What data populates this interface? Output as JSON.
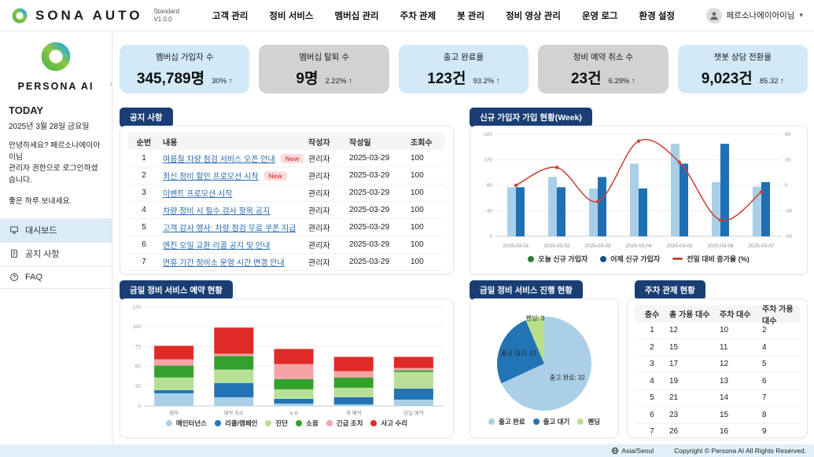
{
  "colors": {
    "navy": "#1a3e74",
    "kpi_blue_bg": "#d2eaf8",
    "kpi_gray_bg": "#d2d2d2",
    "link": "#2b6cb0",
    "footer_bg": "#dff0fb",
    "active_menu_bg": "#d9ecf8",
    "new_badge_bg": "#fbdcdc",
    "new_badge_text": "#e05252"
  },
  "header": {
    "logo_text": "SONA AUTO",
    "version_line1": "Standard",
    "version_line2": "V1.0.0",
    "nav": [
      "고객 관리",
      "정비 서비스",
      "멤버십 관리",
      "주차 관제",
      "봇 관리",
      "정비 영상 관리",
      "운영 로그",
      "환경 설정"
    ],
    "user_name": "페르소나에이아이님"
  },
  "sidebar": {
    "brand": "PERSONA AI",
    "today_label": "TODAY",
    "date": "2025년 3월 28일 금요일",
    "greeting_line1": "안녕하세요? 페르소나에이아이님",
    "greeting_line2": "관리자 권한으로 로그인하셨습니다.",
    "greeting_line3": "좋은 하루 보내세요.",
    "menu": [
      {
        "label": "대시보드",
        "active": true
      },
      {
        "label": "공지 사항",
        "active": false
      },
      {
        "label": "FAQ",
        "active": false
      }
    ]
  },
  "kpis": [
    {
      "title": "멤버십 가입자 수",
      "value": "345,789명",
      "delta": "30% ↑",
      "style": "blue"
    },
    {
      "title": "멤버십 탈퇴 수",
      "value": "9명",
      "delta": "2.22% ↑",
      "style": "gray"
    },
    {
      "title": "출고 완료율",
      "value": "123건",
      "delta": "93.2% ↑",
      "style": "blue"
    },
    {
      "title": "정비 예약 취소 수",
      "value": "23건",
      "delta": "6.29% ↑",
      "style": "gray"
    },
    {
      "title": "챗봇 상담 전환율",
      "value": "9,023건",
      "delta": "85.32 ↑",
      "style": "blue"
    }
  ],
  "notice": {
    "title": "공지 사항",
    "columns": [
      "순번",
      "내용",
      "작성자",
      "작성일",
      "조회수"
    ],
    "new_badge_label": "New",
    "rows": [
      {
        "no": "1",
        "content": "여름철 차량 점검 서비스 오픈 안내",
        "new": true,
        "author": "관리자",
        "date": "2025-03-29",
        "views": "100"
      },
      {
        "no": "2",
        "content": "최신 정비 할인 프로모션 시작",
        "new": true,
        "author": "관리자",
        "date": "2025-03-29",
        "views": "100"
      },
      {
        "no": "3",
        "content": "이벤트 프로모션 시작",
        "new": false,
        "author": "관리자",
        "date": "2025-03-29",
        "views": "100"
      },
      {
        "no": "4",
        "content": "차량 정비 시 필수 검사 항목 공지",
        "new": false,
        "author": "관리자",
        "date": "2025-03-29",
        "views": "100"
      },
      {
        "no": "5",
        "content": "고객 감사 행사: 차량 점검 무료 쿠폰 지급",
        "new": false,
        "author": "관리자",
        "date": "2025-03-29",
        "views": "100"
      },
      {
        "no": "6",
        "content": "엔진 오일 교환 리콜 공지 및 안내",
        "new": false,
        "author": "관리자",
        "date": "2025-03-29",
        "views": "100"
      },
      {
        "no": "7",
        "content": "연휴 기간 정비소 운영 시간 변경 안내",
        "new": false,
        "author": "관리자",
        "date": "2025-03-29",
        "views": "100"
      }
    ]
  },
  "parking": {
    "title": "주차 관제 현황",
    "columns": [
      "층수",
      "총 가용 대수",
      "주차 대수",
      "주차 가용 대수"
    ],
    "rows": [
      [
        "1",
        "12",
        "10",
        "2"
      ],
      [
        "2",
        "15",
        "11",
        "4"
      ],
      [
        "3",
        "17",
        "12",
        "5"
      ],
      [
        "4",
        "19",
        "13",
        "6"
      ],
      [
        "5",
        "21",
        "14",
        "7"
      ],
      [
        "6",
        "23",
        "15",
        "8"
      ],
      [
        "7",
        "26",
        "16",
        "9"
      ]
    ]
  },
  "footer": {
    "timezone": "Asia/Seoul",
    "copyright": "Copyright © Persona AI All Rights Reserved."
  },
  "chart_data": [
    {
      "id": "weekly_signups",
      "type": "bar",
      "title": "신규 가입자 가입 현황(Week)",
      "categories": [
        "2025-03-01",
        "2025-03-02",
        "2025-03-03",
        "2025-03-04",
        "2025-03-05",
        "2025-03-06",
        "2025-03-07"
      ],
      "series": [
        {
          "name": "오늘 신규 가입자",
          "type": "bar",
          "color": "#a9cfe8",
          "legend_color": "#2e7d32",
          "axis": "left",
          "values": [
            77,
            93,
            75,
            114,
            145,
            85,
            78
          ]
        },
        {
          "name": "어제 신규 가입자",
          "type": "bar",
          "color": "#1f6fb2",
          "legend_color": "#1b4f8a",
          "axis": "left",
          "values": [
            77,
            77,
            93,
            75,
            114,
            145,
            85
          ]
        },
        {
          "name": "전일 대비 증가율 (%)",
          "type": "line",
          "color": "#c6473c",
          "legend_color": "#c6473c",
          "axis": "right",
          "values": [
            0,
            21,
            -19,
            52,
            27,
            -41,
            -8
          ]
        }
      ],
      "left_axis": {
        "min": 0,
        "max": 160,
        "ticks": [
          0,
          40,
          80,
          120,
          160
        ]
      },
      "right_axis": {
        "min": -60,
        "max": 60,
        "ticks": [
          -60,
          -30,
          0,
          30,
          60
        ]
      },
      "grid": true,
      "legend_position": "bottom"
    },
    {
      "id": "today_reservations",
      "type": "bar",
      "subtype": "stacked",
      "title": "금일 정비 서비스 예약 현황",
      "categories": [
        "예약",
        "예약 취소",
        "노쇼",
        "재 예약",
        "당일 예약"
      ],
      "series": [
        {
          "name": "메인터넌스",
          "color": "#a9cfe8",
          "values": [
            16,
            11,
            3,
            2,
            8
          ]
        },
        {
          "name": "리콜/캠페인",
          "color": "#2274b5",
          "values": [
            4,
            18,
            6,
            9,
            14
          ]
        },
        {
          "name": "진단",
          "color": "#b7df97",
          "values": [
            16,
            17,
            12,
            12,
            21
          ]
        },
        {
          "name": "소음",
          "color": "#33a02c",
          "values": [
            15,
            17,
            13,
            13,
            2
          ]
        },
        {
          "name": "긴급 조치",
          "color": "#f5a3a6",
          "values": [
            8,
            3,
            19,
            8,
            3
          ]
        },
        {
          "name": "사고 수리",
          "color": "#e02a26",
          "values": [
            17,
            33,
            19,
            18,
            14
          ]
        }
      ],
      "y_axis": {
        "min": 0,
        "max": 125,
        "ticks": [
          0,
          25,
          50,
          75,
          100,
          125
        ]
      },
      "grid": true,
      "legend_position": "bottom"
    },
    {
      "id": "today_progress",
      "type": "pie",
      "title": "금일 정비 서비스 진행 현황",
      "slices": [
        {
          "name": "출고 완료",
          "value": 32,
          "color": "#aacfe6"
        },
        {
          "name": "출고 대기",
          "value": 12,
          "color": "#2274b5"
        },
        {
          "name": "펜딩",
          "value": 3,
          "color": "#b7df8a"
        }
      ],
      "label_format": "name: value",
      "legend_position": "bottom"
    }
  ]
}
